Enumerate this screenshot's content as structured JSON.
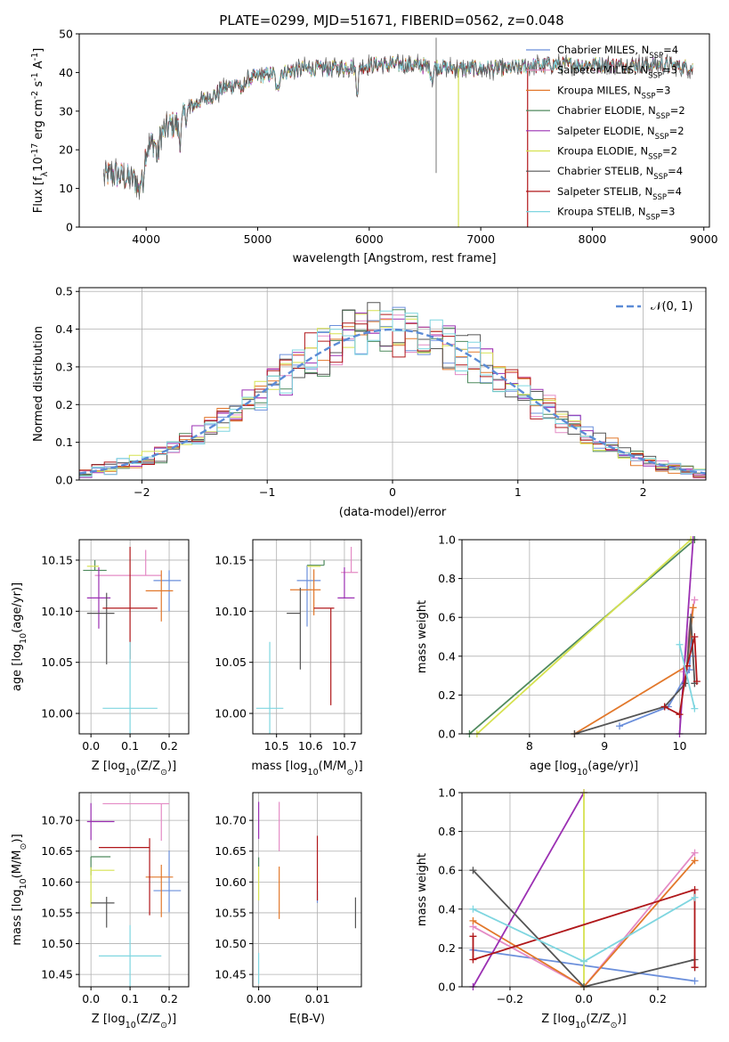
{
  "figure_title": "PLATE=0299, MJD=51671, FIBERID=0562, z=0.048",
  "legend_top": [
    {
      "text": "Chabrier MILES, N",
      "sub": "SSP",
      "tail": "=4",
      "color": "#6b8fdb"
    },
    {
      "text": "Salpeter MILES, N",
      "sub": "SSP",
      "tail": "=3",
      "color": "#e48bc5"
    },
    {
      "text": "Kroupa MILES, N",
      "sub": "SSP",
      "tail": "=3",
      "color": "#e2782b"
    },
    {
      "text": "Chabrier ELODIE, N",
      "sub": "SSP",
      "tail": "=2",
      "color": "#4f8a5e"
    },
    {
      "text": "Salpeter ELODIE, N",
      "sub": "SSP",
      "tail": "=2",
      "color": "#9b30b3"
    },
    {
      "text": "Kroupa ELODIE, N",
      "sub": "SSP",
      "tail": "=2",
      "color": "#d6e250"
    },
    {
      "text": "Chabrier STELIB, N",
      "sub": "SSP",
      "tail": "=4",
      "color": "#555555"
    },
    {
      "text": "Salpeter STELIB, N",
      "sub": "SSP",
      "tail": "=4",
      "color": "#b0171a"
    },
    {
      "text": "Kroupa STELIB, N",
      "sub": "SSP",
      "tail": "=3",
      "color": "#7fd6e0"
    }
  ],
  "chart_data": [
    {
      "id": "spectrum",
      "type": "line",
      "xlabel": "wavelength [Angstrom, rest frame]",
      "ylabel_main": "Flux [f",
      "ylabel_rest": "10",
      "ylabel_exp": "-17",
      "ylabel_units": " erg cm",
      "ylabel_units_exp": "-2",
      "ylabel_s": " s",
      "ylabel_s_exp": "-1",
      "ylabel_A": " A",
      "ylabel_A_exp": "-1",
      "ylabel_close": "]",
      "xlim": [
        3400,
        9050
      ],
      "ylim": [
        0,
        50
      ],
      "xticks": [
        4000,
        5000,
        6000,
        7000,
        8000,
        9000
      ],
      "yticks": [
        0,
        10,
        20,
        30,
        40,
        50
      ],
      "continuum_knots": [
        [
          3620,
          13
        ],
        [
          3700,
          14
        ],
        [
          3800,
          13
        ],
        [
          3900,
          12
        ],
        [
          4000,
          20
        ],
        [
          4100,
          23
        ],
        [
          4200,
          26
        ],
        [
          4300,
          27
        ],
        [
          4400,
          31
        ],
        [
          4500,
          33
        ],
        [
          4600,
          34
        ],
        [
          4700,
          36
        ],
        [
          4800,
          37
        ],
        [
          4900,
          38
        ],
        [
          5000,
          39
        ],
        [
          5200,
          40
        ],
        [
          5400,
          41
        ],
        [
          5600,
          41
        ],
        [
          5800,
          41.5
        ],
        [
          6000,
          42
        ],
        [
          6200,
          42
        ],
        [
          6400,
          42
        ],
        [
          6600,
          41.5
        ],
        [
          6800,
          41
        ],
        [
          7000,
          41
        ],
        [
          7200,
          41
        ],
        [
          7400,
          41.5
        ],
        [
          7600,
          42
        ],
        [
          7800,
          42
        ],
        [
          8000,
          42
        ],
        [
          8200,
          42
        ],
        [
          8400,
          42
        ],
        [
          8600,
          42
        ],
        [
          8800,
          41.5
        ],
        [
          8900,
          41
        ]
      ],
      "absorption_features": [
        [
          3934,
          5
        ],
        [
          3968,
          6
        ],
        [
          4102,
          5
        ],
        [
          4304,
          4
        ],
        [
          4861,
          3
        ],
        [
          5175,
          5
        ],
        [
          5893,
          6
        ],
        [
          6563,
          3
        ]
      ],
      "drop_lines": [
        {
          "x": 6800,
          "series": 5
        },
        {
          "x": 7420,
          "series": 7
        }
      ],
      "sky_line": 6600
    },
    {
      "id": "residuals",
      "type": "histogram",
      "xlabel": "(data-model)/error",
      "ylabel": "Normed distribution",
      "xlim": [
        -2.5,
        2.5
      ],
      "ylim": [
        0,
        0.51
      ],
      "xticks": [
        -2,
        -1,
        0,
        1,
        2
      ],
      "yticks": [
        0.0,
        0.1,
        0.2,
        0.3,
        0.4,
        0.5
      ],
      "bin_width": 0.1,
      "legend": "𝒩(0, 1)",
      "gaussian_color": "#5b8bd6",
      "grid": true
    },
    {
      "id": "z-age",
      "type": "errorbar",
      "xlabel": "Z [log",
      "xlabel_sub": "10",
      "xlabel_tail": "(Z/Z",
      "xlabel_close": ")]",
      "ylabel": "age  [log",
      "ylabel_sub": "10",
      "ylabel_tail": "(age/yr)]",
      "xlim": [
        -0.03,
        0.25
      ],
      "ylim": [
        9.98,
        10.17
      ],
      "xticks": [
        0.0,
        0.1,
        0.2
      ],
      "yticks": [
        10.0,
        10.05,
        10.1,
        10.15
      ],
      "points": [
        {
          "x": 0.2,
          "y": 10.13,
          "xe": [
            0.04,
            0.03
          ],
          "ye": [
            0.03,
            0.01
          ],
          "c": 0
        },
        {
          "x": 0.14,
          "y": 10.135,
          "xe": [
            0.13,
            0.04
          ],
          "ye": [
            0.0,
            0.025
          ],
          "c": 1
        },
        {
          "x": 0.18,
          "y": 10.12,
          "xe": [
            0.04,
            0.03
          ],
          "ye": [
            0.03,
            0.02
          ],
          "c": 2
        },
        {
          "x": 0.01,
          "y": 10.14,
          "xe": [
            0.03,
            0.03
          ],
          "ye": [
            0.0,
            0.01
          ],
          "c": 3
        },
        {
          "x": 0.02,
          "y": 10.113,
          "xe": [
            0.03,
            0.03
          ],
          "ye": [
            0.03,
            0.03
          ],
          "c": 4
        },
        {
          "x": 0.0,
          "y": 10.144,
          "xe": [
            0.01,
            0.02
          ],
          "ye": [
            0.0,
            0.0
          ],
          "c": 5
        },
        {
          "x": 0.04,
          "y": 10.098,
          "xe": [
            0.05,
            0.02
          ],
          "ye": [
            0.05,
            0.02
          ],
          "c": 6
        },
        {
          "x": 0.1,
          "y": 10.103,
          "xe": [
            0.07,
            0.07
          ],
          "ye": [
            0.05,
            0.06
          ],
          "c": 7
        },
        {
          "x": 0.1,
          "y": 10.005,
          "xe": [
            0.07,
            0.07
          ],
          "ye": [
            0.03,
            0.065
          ],
          "c": 8
        }
      ]
    },
    {
      "id": "mass-age",
      "type": "errorbar",
      "xlabel": "mass [log",
      "xlabel_sub": "10",
      "xlabel_tail": "(M/M",
      "xlabel_close": ")]",
      "xlim": [
        10.43,
        10.75
      ],
      "ylim": [
        9.98,
        10.17
      ],
      "xticks": [
        10.5,
        10.6,
        10.7
      ],
      "yticks": [
        10.0,
        10.05,
        10.1,
        10.15
      ],
      "points": [
        {
          "x": 10.59,
          "y": 10.13,
          "xe": [
            0.03,
            0.04
          ],
          "ye": [
            0.045,
            0.015
          ],
          "c": 0
        },
        {
          "x": 10.72,
          "y": 10.138,
          "xe": [
            0.03,
            0.02
          ],
          "ye": [
            0.0,
            0.025
          ],
          "c": 1
        },
        {
          "x": 10.61,
          "y": 10.121,
          "xe": [
            0.07,
            0.02
          ],
          "ye": [
            0.025,
            0.02
          ],
          "c": 2
        },
        {
          "x": 10.64,
          "y": 10.145,
          "xe": [
            0.05,
            0.0
          ],
          "ye": [
            0.0,
            0.005
          ],
          "c": 3
        },
        {
          "x": 10.7,
          "y": 10.113,
          "xe": [
            0.02,
            0.03
          ],
          "ye": [
            0.0,
            0.03
          ],
          "c": 4
        },
        {
          "x": 10.62,
          "y": 10.144,
          "xe": [
            0.03,
            0.01
          ],
          "ye": [
            0.0,
            0.0
          ],
          "c": 5
        },
        {
          "x": 10.57,
          "y": 10.098,
          "xe": [
            0.04,
            0.0
          ],
          "ye": [
            0.055,
            0.025
          ],
          "c": 6
        },
        {
          "x": 10.66,
          "y": 10.103,
          "xe": [
            0.05,
            0.01
          ],
          "ye": [
            0.095,
            0.0
          ],
          "c": 7
        },
        {
          "x": 10.48,
          "y": 10.005,
          "xe": [
            0.04,
            0.04
          ],
          "ye": [
            0.035,
            0.065
          ],
          "c": 8
        }
      ]
    },
    {
      "id": "mw-age",
      "type": "line",
      "xlabel": "age  [log",
      "xlabel_sub": "10",
      "xlabel_tail": "(age/yr)]",
      "ylabel": "mass weight",
      "xlim": [
        7.1,
        10.35
      ],
      "ylim": [
        0,
        1
      ],
      "xticks": [
        8,
        9,
        10
      ],
      "yticks": [
        0.0,
        0.2,
        0.4,
        0.6,
        0.8,
        1.0
      ],
      "series": [
        {
          "c": 0,
          "points": [
            [
              9.2,
              0.04
            ],
            [
              9.85,
              0.14
            ],
            [
              10.13,
              0.33
            ],
            [
              10.15,
              0.48
            ],
            [
              10.18,
              0.4
            ]
          ]
        },
        {
          "c": 1,
          "points": [
            [
              10.05,
              0.32
            ],
            [
              10.15,
              0.6
            ],
            [
              10.2,
              0.69
            ]
          ]
        },
        {
          "c": 2,
          "points": [
            [
              8.6,
              0.0
            ],
            [
              10.1,
              0.35
            ],
            [
              10.18,
              0.65
            ]
          ]
        },
        {
          "c": 3,
          "points": [
            [
              7.2,
              0.0
            ],
            [
              10.2,
              1.0
            ]
          ]
        },
        {
          "c": 4,
          "points": [
            [
              10.0,
              0.0
            ],
            [
              10.18,
              1.0
            ]
          ]
        },
        {
          "c": 5,
          "points": [
            [
              7.3,
              0.0
            ],
            [
              10.15,
              1.0
            ]
          ]
        },
        {
          "c": 6,
          "points": [
            [
              8.6,
              0.0
            ],
            [
              9.8,
              0.14
            ],
            [
              10.08,
              0.26
            ],
            [
              10.15,
              0.6
            ],
            [
              10.2,
              0.26
            ]
          ]
        },
        {
          "c": 7,
          "points": [
            [
              9.8,
              0.14
            ],
            [
              10.0,
              0.1
            ],
            [
              10.1,
              0.35
            ],
            [
              10.2,
              0.5
            ],
            [
              10.23,
              0.27
            ]
          ]
        },
        {
          "c": 8,
          "points": [
            [
              10.0,
              0.46
            ],
            [
              10.2,
              0.13
            ]
          ]
        }
      ]
    },
    {
      "id": "z-mass",
      "type": "errorbar",
      "xlabel": "Z [log",
      "xlabel_sub": "10",
      "xlabel_tail": "(Z/Z",
      "xlabel_close": ")]",
      "ylabel": "mass [log",
      "ylabel_sub": "10",
      "ylabel_tail": "(M/M",
      "ylabel_close": ")]",
      "xlim": [
        -0.03,
        0.25
      ],
      "ylim": [
        10.43,
        10.745
      ],
      "xticks": [
        0.0,
        0.1,
        0.2
      ],
      "yticks": [
        10.45,
        10.5,
        10.55,
        10.6,
        10.65,
        10.7
      ],
      "points": [
        {
          "x": 0.2,
          "y": 10.586,
          "xe": [
            0.04,
            0.03
          ],
          "ye": [
            0.035,
            0.065
          ],
          "c": 0
        },
        {
          "x": 0.18,
          "y": 10.727,
          "xe": [
            0.15,
            0.02
          ],
          "ye": [
            0.06,
            0.0
          ],
          "c": 1
        },
        {
          "x": 0.18,
          "y": 10.608,
          "xe": [
            0.04,
            0.03
          ],
          "ye": [
            0.065,
            0.02
          ],
          "c": 2
        },
        {
          "x": 0.0,
          "y": 10.641,
          "xe": [
            0.0,
            0.05
          ],
          "ye": [
            0.03,
            0.0
          ],
          "c": 3
        },
        {
          "x": 0.0,
          "y": 10.698,
          "xe": [
            0.01,
            0.06
          ],
          "ye": [
            0.03,
            0.03
          ],
          "c": 4
        },
        {
          "x": 0.0,
          "y": 10.619,
          "xe": [
            0.0,
            0.06
          ],
          "ye": [
            0.06,
            0.005
          ],
          "c": 5
        },
        {
          "x": 0.04,
          "y": 10.566,
          "xe": [
            0.04,
            0.02
          ],
          "ye": [
            0.04,
            0.01
          ],
          "c": 6
        },
        {
          "x": 0.15,
          "y": 10.656,
          "xe": [
            0.13,
            0.0
          ],
          "ye": [
            0.11,
            0.015
          ],
          "c": 7
        },
        {
          "x": 0.1,
          "y": 10.48,
          "xe": [
            0.08,
            0.08
          ],
          "ye": [
            0.05,
            0.05
          ],
          "c": 8
        }
      ]
    },
    {
      "id": "ebv-mass",
      "type": "errorbar",
      "xlabel": "E(B-V)",
      "xlim": [
        -0.001,
        0.0175
      ],
      "ylim": [
        10.43,
        10.745
      ],
      "xticks": [
        0.0,
        0.01
      ],
      "yticks": [
        10.45,
        10.5,
        10.55,
        10.6,
        10.65,
        10.7
      ],
      "points": [
        {
          "x": 0.01,
          "y": 10.586,
          "ye": [
            0.02,
            0.0
          ],
          "c": 0
        },
        {
          "x": 0.0035,
          "y": 10.69,
          "ye": [
            0.04,
            0.04
          ],
          "c": 1
        },
        {
          "x": 0.0035,
          "y": 10.6,
          "ye": [
            0.06,
            0.025
          ],
          "c": 2
        },
        {
          "x": 0.0,
          "y": 10.64,
          "ye": [
            0.015,
            0.0
          ],
          "c": 3
        },
        {
          "x": 0.0,
          "y": 10.7,
          "ye": [
            0.03,
            0.03
          ],
          "c": 4
        },
        {
          "x": 0.0,
          "y": 10.6,
          "ye": [
            0.03,
            0.025
          ],
          "c": 5
        },
        {
          "x": 0.0165,
          "y": 10.55,
          "ye": [
            0.025,
            0.025
          ],
          "c": 6
        },
        {
          "x": 0.01,
          "y": 10.63,
          "ye": [
            0.06,
            0.045
          ],
          "c": 7
        },
        {
          "x": 0.0,
          "y": 10.465,
          "ye": [
            0.03,
            0.02
          ],
          "c": 8
        }
      ]
    },
    {
      "id": "mw-z",
      "type": "line",
      "xlabel": "Z [log",
      "xlabel_sub": "10",
      "xlabel_tail": "(Z/Z",
      "xlabel_close": ")]",
      "ylabel": "mass weight",
      "xlim": [
        -0.33,
        0.33
      ],
      "ylim": [
        0,
        1
      ],
      "xticks": [
        -0.2,
        0.0,
        0.2
      ],
      "yticks": [
        0.0,
        0.2,
        0.4,
        0.6,
        0.8,
        1.0
      ],
      "series": [
        {
          "c": 0,
          "points": [
            [
              -0.3,
              0.19
            ],
            [
              0.3,
              0.03
            ]
          ]
        },
        {
          "c": 1,
          "points": [
            [
              -0.3,
              0.31
            ],
            [
              0.0,
              0.0
            ],
            [
              0.3,
              0.69
            ]
          ]
        },
        {
          "c": 2,
          "points": [
            [
              -0.3,
              0.34
            ],
            [
              0.0,
              0.0
            ],
            [
              0.3,
              0.65
            ]
          ]
        },
        {
          "c": 4,
          "points": [
            [
              -0.3,
              0.0
            ],
            [
              0.0,
              1.0
            ]
          ]
        },
        {
          "c": 5,
          "points": [
            [
              0.0,
              1.0
            ],
            [
              0.0,
              0.0
            ]
          ]
        },
        {
          "c": 6,
          "points": [
            [
              -0.3,
              0.6
            ],
            [
              0.0,
              0.0
            ],
            [
              0.3,
              0.14
            ],
            [
              0.3,
              0.1
            ]
          ]
        },
        {
          "c": 7,
          "points": [
            [
              -0.3,
              0.26
            ],
            [
              -0.3,
              0.14
            ],
            [
              0.3,
              0.5
            ],
            [
              0.3,
              0.1
            ]
          ]
        },
        {
          "c": 8,
          "points": [
            [
              -0.3,
              0.4
            ],
            [
              0.0,
              0.13
            ],
            [
              0.3,
              0.46
            ]
          ]
        }
      ]
    }
  ]
}
